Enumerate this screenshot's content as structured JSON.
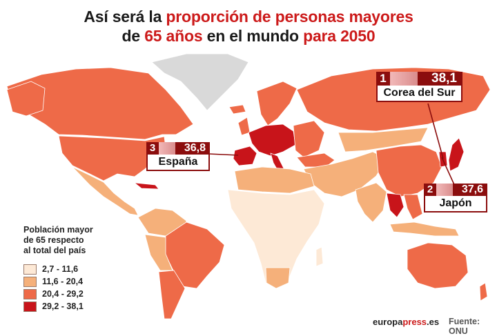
{
  "title": {
    "part1": "Así será la ",
    "part2": "proporción de personas mayores",
    "part3": "de ",
    "part4": "65 años",
    "part5": " en el mundo ",
    "part6": "para 2050"
  },
  "legend": {
    "title_line1": "Población mayor",
    "title_line2": "de 65 respecto",
    "title_line3": "al total del país",
    "items": [
      {
        "label": "2,7 - 11,6",
        "color": "#fde9d6"
      },
      {
        "label": "11,6 - 20,4",
        "color": "#f5b07a"
      },
      {
        "label": "20,4 - 29,2",
        "color": "#ee6a48"
      },
      {
        "label": "29,2 - 38,1",
        "color": "#c8141a"
      }
    ]
  },
  "callouts": [
    {
      "rank": "1",
      "value": "38,1",
      "country": "Corea del Sur"
    },
    {
      "rank": "2",
      "value": "37,6",
      "country": "Japón"
    },
    {
      "rank": "3",
      "value": "36,8",
      "country": "España"
    }
  ],
  "footer": {
    "brand_a": "europa",
    "brand_b": "press",
    "brand_c": ".es",
    "source": "Fuente: ONU"
  },
  "colors": {
    "no_data": "#d9d9d9",
    "accent": "#8b0d0d",
    "title_red": "#cc1a1a"
  }
}
